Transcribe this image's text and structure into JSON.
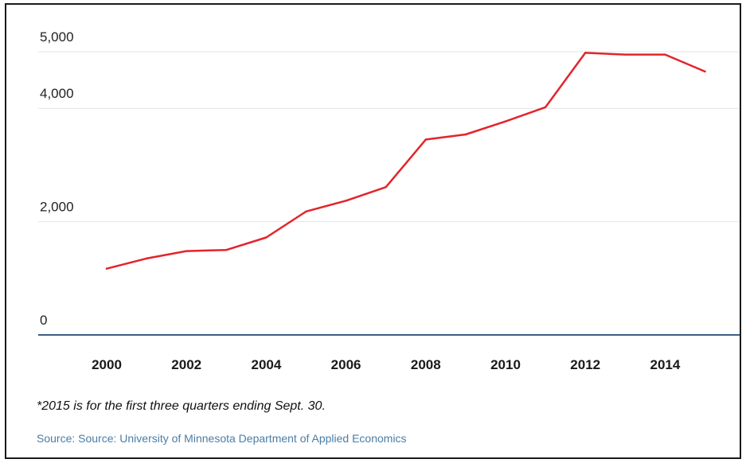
{
  "colors": {
    "line": "#e3242b",
    "grid": "#e6e6e6",
    "baseline": "#3b5f86",
    "source_text": "#4a7da6"
  },
  "chart_data": {
    "type": "line",
    "x": [
      2000,
      2001,
      2002,
      2003,
      2004,
      2005,
      2006,
      2007,
      2008,
      2009,
      2010,
      2011,
      2012,
      2013,
      2014,
      2015
    ],
    "series": [
      {
        "values": [
          1170,
          1350,
          1480,
          1500,
          1720,
          2180,
          2370,
          2610,
          3450,
          3540,
          3770,
          4020,
          4980,
          4950,
          4950,
          4650
        ]
      }
    ],
    "y_ticks": [
      0,
      2000,
      4000,
      5000
    ],
    "y_tick_labels": [
      "0",
      "2,000",
      "4,000",
      "5,000"
    ],
    "x_ticks": [
      2000,
      2002,
      2004,
      2006,
      2008,
      2010,
      2012,
      2014
    ],
    "x_tick_labels": [
      "2000",
      "2002",
      "2004",
      "2006",
      "2008",
      "2010",
      "2012",
      "2014"
    ],
    "ylim": [
      0,
      5000
    ],
    "xlim": [
      1999,
      2017
    ],
    "grid": "horizontal",
    "legend": "none",
    "title": "",
    "xlabel": "",
    "ylabel": ""
  },
  "footnote": "*2015 is for the first three quarters ending Sept. 30.",
  "source": "Source: Source: University of Minnesota Department of Applied Economics"
}
